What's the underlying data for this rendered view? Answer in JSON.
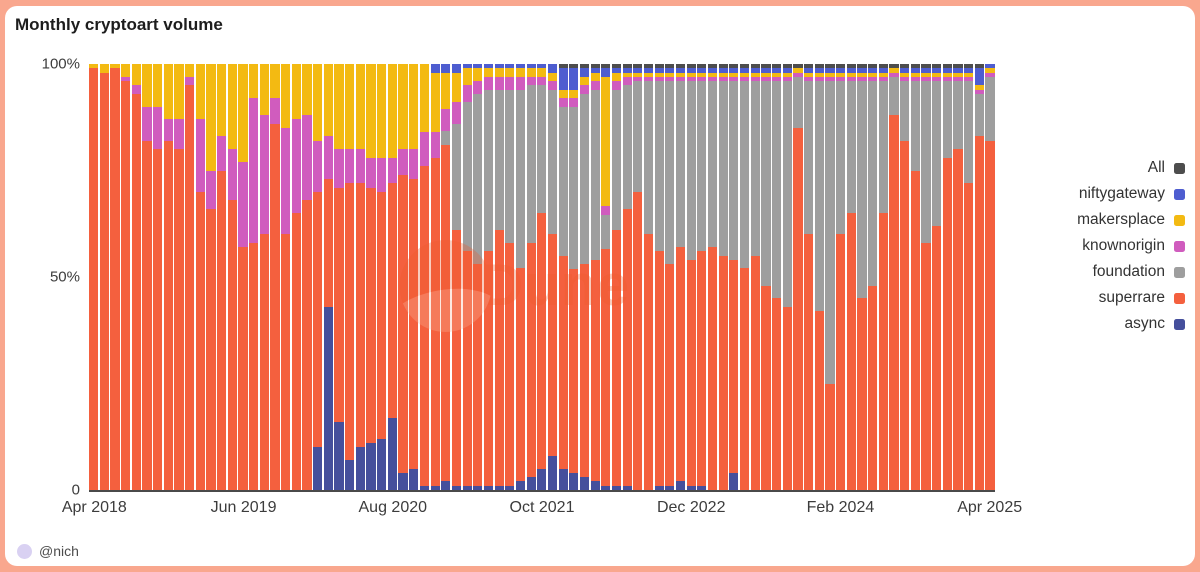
{
  "page": {
    "title": "Monthly cryptoart volume",
    "attribution": "@nich"
  },
  "watermark": {
    "text": "Dune"
  },
  "legend": {
    "items": [
      {
        "label": "All",
        "key": "all"
      },
      {
        "label": "niftygateway",
        "key": "niftygateway"
      },
      {
        "label": "makersplace",
        "key": "makersplace"
      },
      {
        "label": "knownorigin",
        "key": "knownorigin"
      },
      {
        "label": "foundation",
        "key": "foundation"
      },
      {
        "label": "superrare",
        "key": "superrare"
      },
      {
        "label": "async",
        "key": "async"
      }
    ]
  },
  "chart_data": {
    "type": "bar",
    "stacked": true,
    "normalized_percent": true,
    "title": "Monthly cryptoart volume",
    "ylim": [
      0,
      100
    ],
    "y_tick_labels": [
      "100%",
      "50%",
      "0"
    ],
    "x_tick_labels": [
      "Apr 2018",
      "Jun 2019",
      "Aug 2020",
      "Oct 2021",
      "Dec 2022",
      "Feb 2024",
      "Apr 2025"
    ],
    "x_tick_indices": [
      0,
      14,
      28,
      42,
      56,
      70,
      84
    ],
    "stack_order_bottom_to_top": [
      "async",
      "superrare",
      "foundation",
      "knownorigin",
      "makersplace",
      "niftygateway",
      "all"
    ],
    "x": [
      "2018-04",
      "2018-05",
      "2018-06",
      "2018-07",
      "2018-08",
      "2018-09",
      "2018-10",
      "2018-11",
      "2018-12",
      "2019-01",
      "2019-02",
      "2019-03",
      "2019-04",
      "2019-05",
      "2019-06",
      "2019-07",
      "2019-08",
      "2019-09",
      "2019-10",
      "2019-11",
      "2019-12",
      "2020-01",
      "2020-02",
      "2020-03",
      "2020-04",
      "2020-05",
      "2020-06",
      "2020-07",
      "2020-08",
      "2020-09",
      "2020-10",
      "2020-11",
      "2020-12",
      "2021-01",
      "2021-02",
      "2021-03",
      "2021-04",
      "2021-05",
      "2021-06",
      "2021-07",
      "2021-08",
      "2021-09",
      "2021-10",
      "2021-11",
      "2021-12",
      "2022-01",
      "2022-02",
      "2022-03",
      "2022-04",
      "2022-05",
      "2022-06",
      "2022-07",
      "2022-08",
      "2022-09",
      "2022-10",
      "2022-11",
      "2022-12",
      "2023-01",
      "2023-02",
      "2023-03",
      "2023-04",
      "2023-05",
      "2023-06",
      "2023-07",
      "2023-08",
      "2023-09",
      "2023-10",
      "2023-11",
      "2023-12",
      "2024-01",
      "2024-02",
      "2024-03",
      "2024-04",
      "2024-05",
      "2024-06",
      "2024-07",
      "2024-08",
      "2024-09",
      "2024-10",
      "2024-11",
      "2024-12",
      "2025-01",
      "2025-02",
      "2025-03",
      "2025-04"
    ],
    "series": [
      {
        "name": "async",
        "color": "#454f9c",
        "values": [
          0,
          0,
          0,
          0,
          0,
          0,
          0,
          0,
          0,
          0,
          0,
          0,
          0,
          0,
          0,
          0,
          0,
          0,
          0,
          0,
          0,
          10,
          43,
          16,
          7,
          10,
          11,
          12,
          17,
          4,
          5,
          1,
          1,
          2,
          1,
          1,
          1,
          1,
          1,
          1,
          2,
          3,
          5,
          8,
          5,
          4,
          3,
          2,
          1,
          1,
          1,
          0,
          0,
          1,
          1,
          2,
          1,
          1,
          0,
          0,
          4,
          0,
          0,
          0,
          0,
          0,
          0,
          0,
          0,
          0,
          0,
          0,
          0,
          0,
          0,
          0,
          0,
          0,
          0,
          0,
          0,
          0,
          0,
          0,
          0
        ]
      },
      {
        "name": "superrare",
        "color": "#f4603e",
        "values": [
          99,
          98,
          99,
          96,
          93,
          82,
          80,
          82,
          80,
          95,
          70,
          66,
          75,
          68,
          57,
          58,
          60,
          86,
          60,
          65,
          68,
          60,
          30,
          55,
          65,
          62,
          60,
          58,
          55,
          70,
          68,
          75,
          77,
          75,
          60,
          55,
          52,
          55,
          60,
          57,
          50,
          55,
          60,
          52,
          50,
          48,
          50,
          52,
          55,
          60,
          65,
          70,
          60,
          55,
          52,
          55,
          53,
          55,
          57,
          55,
          50,
          52,
          55,
          48,
          45,
          43,
          85,
          60,
          42,
          25,
          60,
          65,
          45,
          48,
          65,
          88,
          82,
          75,
          58,
          62,
          78,
          80,
          72,
          83,
          82
        ]
      },
      {
        "name": "foundation",
        "color": "#9e9e9e",
        "values": [
          0,
          0,
          0,
          0,
          0,
          0,
          0,
          0,
          0,
          0,
          0,
          0,
          0,
          0,
          0,
          0,
          0,
          0,
          0,
          0,
          0,
          0,
          0,
          0,
          0,
          0,
          0,
          0,
          0,
          0,
          0,
          0,
          0,
          3,
          25,
          35,
          40,
          38,
          33,
          36,
          42,
          37,
          30,
          34,
          35,
          38,
          40,
          40,
          8,
          33,
          29,
          26,
          36,
          40,
          43,
          39,
          42,
          40,
          39,
          41,
          42,
          44,
          41,
          48,
          51,
          53,
          12,
          36,
          54,
          71,
          36,
          31,
          51,
          48,
          31,
          9,
          14,
          21,
          38,
          34,
          18,
          16,
          24,
          10,
          15
        ]
      },
      {
        "name": "knownorigin",
        "color": "#d05cbe",
        "values": [
          0,
          0,
          0,
          1,
          2,
          8,
          10,
          5,
          7,
          2,
          17,
          9,
          8,
          12,
          20,
          34,
          28,
          6,
          25,
          22,
          20,
          12,
          10,
          9,
          8,
          8,
          7,
          8,
          6,
          6,
          7,
          8,
          6,
          5,
          5,
          4,
          3,
          3,
          3,
          3,
          3,
          2,
          2,
          2,
          2,
          2,
          2,
          2,
          2,
          2,
          2,
          1,
          1,
          1,
          1,
          1,
          1,
          1,
          1,
          1,
          1,
          1,
          1,
          1,
          1,
          1,
          1,
          1,
          1,
          1,
          1,
          1,
          1,
          1,
          1,
          1,
          1,
          1,
          1,
          1,
          1,
          1,
          1,
          1,
          1
        ]
      },
      {
        "name": "makersplace",
        "color": "#f3ba12",
        "values": [
          1,
          2,
          1,
          3,
          5,
          10,
          10,
          13,
          13,
          3,
          13,
          25,
          17,
          20,
          23,
          8,
          12,
          8,
          15,
          13,
          12,
          18,
          17,
          20,
          20,
          20,
          22,
          22,
          22,
          20,
          20,
          16,
          14,
          8,
          7,
          4,
          3,
          2,
          2,
          2,
          2,
          2,
          2,
          2,
          2,
          2,
          2,
          2,
          30,
          2,
          1,
          1,
          1,
          1,
          1,
          1,
          1,
          1,
          1,
          1,
          1,
          1,
          1,
          1,
          1,
          1,
          1,
          1,
          1,
          1,
          1,
          1,
          1,
          1,
          1,
          1,
          1,
          1,
          1,
          1,
          1,
          1,
          1,
          1,
          1
        ]
      },
      {
        "name": "niftygateway",
        "color": "#4e5dd0",
        "values": [
          0,
          0,
          0,
          0,
          0,
          0,
          0,
          0,
          0,
          0,
          0,
          0,
          0,
          0,
          0,
          0,
          0,
          0,
          0,
          0,
          0,
          0,
          0,
          0,
          0,
          0,
          0,
          0,
          0,
          0,
          0,
          0,
          2,
          2,
          2,
          1,
          1,
          1,
          1,
          1,
          1,
          1,
          1,
          2,
          5,
          5,
          2,
          1,
          2,
          1,
          1,
          1,
          1,
          1,
          1,
          1,
          1,
          1,
          1,
          1,
          1,
          1,
          1,
          1,
          1,
          1,
          0,
          1,
          1,
          1,
          1,
          1,
          1,
          1,
          1,
          0,
          1,
          1,
          1,
          1,
          1,
          1,
          1,
          4,
          1
        ]
      },
      {
        "name": "all",
        "color": "#4d4d4d",
        "values": [
          0,
          0,
          0,
          0,
          0,
          0,
          0,
          0,
          0,
          0,
          0,
          0,
          0,
          0,
          0,
          0,
          0,
          0,
          0,
          0,
          0,
          0,
          0,
          0,
          0,
          0,
          0,
          0,
          0,
          0,
          0,
          0,
          0,
          0,
          0,
          0,
          0,
          0,
          0,
          0,
          0,
          0,
          0,
          0,
          1,
          1,
          1,
          1,
          1,
          1,
          1,
          1,
          1,
          1,
          1,
          1,
          1,
          1,
          1,
          1,
          1,
          1,
          1,
          1,
          1,
          1,
          1,
          1,
          1,
          1,
          1,
          1,
          1,
          1,
          1,
          1,
          1,
          1,
          1,
          1,
          1,
          1,
          1,
          1,
          0
        ]
      }
    ]
  }
}
